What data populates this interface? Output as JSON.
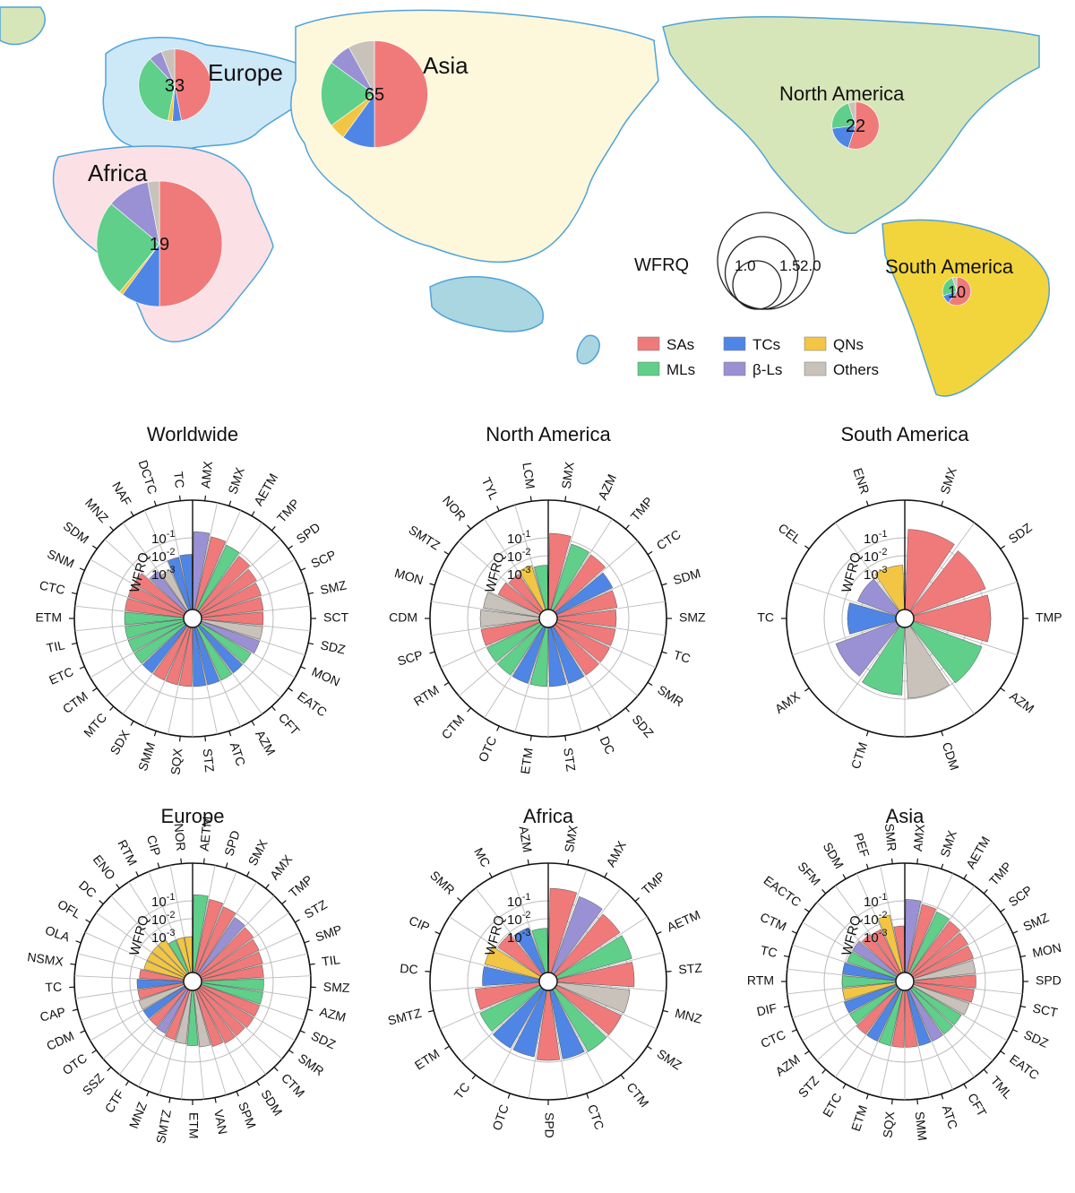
{
  "colors": {
    "SAs": "#f07a7a",
    "TCs": "#4f86e6",
    "QNs": "#f2c644",
    "MLs": "#5fcf8a",
    "bLs": "#9a91d4",
    "Others": "#c8c2ba",
    "ocean_outline": "#4ea3d9",
    "asia": "#fdf7dc",
    "europe": "#cde8f7",
    "africa": "#fbe1e5",
    "north_america": "#d7e6b8",
    "south_america": "#f2d53c",
    "oceania": "#a9d6e0"
  },
  "map": {
    "regions": [
      {
        "name": "Europe",
        "count": "33",
        "wfrq": 1.15,
        "shares": {
          "SAs": 0.47,
          "MLs": 0.35,
          "TCs": 0.04,
          "QNs": 0.02,
          "bLs": 0.06,
          "Others": 0.06
        }
      },
      {
        "name": "Asia",
        "count": "65",
        "wfrq": 1.7,
        "shares": {
          "SAs": 0.5,
          "TCs": 0.1,
          "QNs": 0.05,
          "MLs": 0.2,
          "bLs": 0.07,
          "Others": 0.08
        }
      },
      {
        "name": "North America",
        "count": "22",
        "wfrq": 0.75,
        "shares": {
          "SAs": 0.55,
          "TCs": 0.18,
          "MLs": 0.22,
          "Others": 0.05
        }
      },
      {
        "name": "Africa",
        "count": "19",
        "wfrq": 2.0,
        "shares": {
          "SAs": 0.5,
          "TCs": 0.1,
          "QNs": 0.01,
          "MLs": 0.25,
          "bLs": 0.11,
          "Others": 0.03
        }
      },
      {
        "name": "South America",
        "count": "10",
        "wfrq": 0.45,
        "shares": {
          "SAs": 0.6,
          "MLs": 0.25,
          "TCs": 0.1,
          "Others": 0.05
        }
      }
    ],
    "size_legend": {
      "label": "WFRQ",
      "values": [
        "1.0",
        "1.5",
        "2.0"
      ]
    },
    "category_legend": [
      {
        "key": "SAs",
        "label": "SAs"
      },
      {
        "key": "TCs",
        "label": "TCs"
      },
      {
        "key": "QNs",
        "label": "QNs"
      },
      {
        "key": "MLs",
        "label": "MLs"
      },
      {
        "key": "bLs",
        "label": "β-Ls"
      },
      {
        "key": "Others",
        "label": "Others"
      }
    ]
  },
  "chart_data": [
    {
      "type": "polar-bar",
      "title": "Worldwide",
      "ylabel": "WFRQ",
      "scale": "log",
      "ylim": [
        1e-05,
        1
      ],
      "ticks": [
        "10",
        "10",
        "10"
      ],
      "tick_exponents": [
        "-1",
        "-2",
        "-3"
      ],
      "bars": [
        {
          "label": "AMX",
          "cat": "bLs",
          "value": 0.22
        },
        {
          "label": "SMX",
          "cat": "SAs",
          "value": 0.15
        },
        {
          "label": "AETM",
          "cat": "MLs",
          "value": 0.1
        },
        {
          "label": "TMP",
          "cat": "SAs",
          "value": 0.07
        },
        {
          "label": "SPD",
          "cat": "SAs",
          "value": 0.045
        },
        {
          "label": "SCP",
          "cat": "SAs",
          "value": 0.035
        },
        {
          "label": "SMZ",
          "cat": "SAs",
          "value": 0.03
        },
        {
          "label": "SCT",
          "cat": "SAs",
          "value": 0.028
        },
        {
          "label": "SDZ",
          "cat": "Others",
          "value": 0.028
        },
        {
          "label": "MON",
          "cat": "bLs",
          "value": 0.028
        },
        {
          "label": "EATC",
          "cat": "MLs",
          "value": 0.02
        },
        {
          "label": "CFT",
          "cat": "TCs",
          "value": 0.02
        },
        {
          "label": "AZM",
          "cat": "MLs",
          "value": 0.02
        },
        {
          "label": "ATC",
          "cat": "TCs",
          "value": 0.02
        },
        {
          "label": "STZ",
          "cat": "TCs",
          "value": 0.02
        },
        {
          "label": "SQX",
          "cat": "SAs",
          "value": 0.02
        },
        {
          "label": "SMM",
          "cat": "SAs",
          "value": 0.02
        },
        {
          "label": "SDX",
          "cat": "SAs",
          "value": 0.02
        },
        {
          "label": "MTC",
          "cat": "TCs",
          "value": 0.02
        },
        {
          "label": "CTM",
          "cat": "MLs",
          "value": 0.02
        },
        {
          "label": "ETC",
          "cat": "MLs",
          "value": 0.02
        },
        {
          "label": "TIL",
          "cat": "MLs",
          "value": 0.02
        },
        {
          "label": "ETM",
          "cat": "MLs",
          "value": 0.02
        },
        {
          "label": "CTC",
          "cat": "SAs",
          "value": 0.02
        },
        {
          "label": "SNM",
          "cat": "SAs",
          "value": 0.02
        },
        {
          "label": "SDM",
          "cat": "SAs",
          "value": 0.02
        },
        {
          "label": "MNZ",
          "cat": "bLs",
          "value": 0.006
        },
        {
          "label": "NAF",
          "cat": "Others",
          "value": 0.003
        },
        {
          "label": "DCTC",
          "cat": "TCs",
          "value": 0.01
        },
        {
          "label": "TC",
          "cat": "TCs",
          "value": 0.012
        }
      ]
    },
    {
      "type": "polar-bar",
      "title": "North America",
      "ylabel": "WFRQ",
      "scale": "log",
      "ylim": [
        1e-05,
        1
      ],
      "ticks": [
        "10",
        "10",
        "10"
      ],
      "tick_exponents": [
        "-1",
        "-2",
        "-3"
      ],
      "bars": [
        {
          "label": "SMX",
          "cat": "SAs",
          "value": 0.18
        },
        {
          "label": "AZM",
          "cat": "MLs",
          "value": 0.07
        },
        {
          "label": "TMP",
          "cat": "SAs",
          "value": 0.06
        },
        {
          "label": "CTC",
          "cat": "TCs",
          "value": 0.03
        },
        {
          "label": "SDM",
          "cat": "SAs",
          "value": 0.025
        },
        {
          "label": "SMZ",
          "cat": "SAs",
          "value": 0.02
        },
        {
          "label": "TC",
          "cat": "SAs",
          "value": 0.02
        },
        {
          "label": "SMR",
          "cat": "SAs",
          "value": 0.02
        },
        {
          "label": "SDZ",
          "cat": "SAs",
          "value": 0.02
        },
        {
          "label": "DC",
          "cat": "TCs",
          "value": 0.02
        },
        {
          "label": "STZ",
          "cat": "TCs",
          "value": 0.02
        },
        {
          "label": "ETM",
          "cat": "MLs",
          "value": 0.02
        },
        {
          "label": "OTC",
          "cat": "TCs",
          "value": 0.02
        },
        {
          "label": "CTM",
          "cat": "MLs",
          "value": 0.02
        },
        {
          "label": "RTM",
          "cat": "MLs",
          "value": 0.02
        },
        {
          "label": "SCP",
          "cat": "SAs",
          "value": 0.02
        },
        {
          "label": "CDM",
          "cat": "Others",
          "value": 0.02
        },
        {
          "label": "MON",
          "cat": "Others",
          "value": 0.015
        },
        {
          "label": "SMTZ",
          "cat": "SAs",
          "value": 0.004
        },
        {
          "label": "NOR",
          "cat": "SAs",
          "value": 0.003
        },
        {
          "label": "TYL",
          "cat": "QNs",
          "value": 0.004
        },
        {
          "label": "LCM",
          "cat": "MLs",
          "value": 0.003
        }
      ]
    },
    {
      "type": "polar-bar",
      "title": "South America",
      "ylabel": "WFRQ",
      "scale": "log",
      "ylim": [
        1e-05,
        1
      ],
      "ticks": [
        "10",
        "10",
        "10"
      ],
      "tick_exponents": [
        "-1",
        "-2",
        "-3"
      ],
      "bars": [
        {
          "label": "SMX",
          "cat": "SAs",
          "value": 0.3
        },
        {
          "label": "SDZ",
          "cat": "SAs",
          "value": 0.2
        },
        {
          "label": "TMP",
          "cat": "SAs",
          "value": 0.2
        },
        {
          "label": "AZM",
          "cat": "MLs",
          "value": 0.12
        },
        {
          "label": "CDM",
          "cat": "Others",
          "value": 0.09
        },
        {
          "label": "CTM",
          "cat": "MLs",
          "value": 0.06
        },
        {
          "label": "AMX",
          "cat": "bLs",
          "value": 0.04
        },
        {
          "label": "TC",
          "cat": "TCs",
          "value": 0.005
        },
        {
          "label": "CEL",
          "cat": "bLs",
          "value": 0.002
        },
        {
          "label": "ENR",
          "cat": "QNs",
          "value": 0.003
        }
      ]
    },
    {
      "type": "polar-bar",
      "title": "Europe",
      "ylabel": "WFRQ",
      "scale": "log",
      "ylim": [
        1e-05,
        1
      ],
      "ticks": [
        "10",
        "10",
        "10"
      ],
      "tick_exponents": [
        "-1",
        "-2",
        "-3"
      ],
      "bars": [
        {
          "label": "AETM",
          "cat": "MLs",
          "value": 0.22
        },
        {
          "label": "SPD",
          "cat": "SAs",
          "value": 0.15
        },
        {
          "label": "SMX",
          "cat": "SAs",
          "value": 0.1
        },
        {
          "label": "AMX",
          "cat": "bLs",
          "value": 0.06
        },
        {
          "label": "TMP",
          "cat": "SAs",
          "value": 0.05
        },
        {
          "label": "STZ",
          "cat": "SAs",
          "value": 0.04
        },
        {
          "label": "SMP",
          "cat": "SAs",
          "value": 0.035
        },
        {
          "label": "TIL",
          "cat": "SAs",
          "value": 0.03
        },
        {
          "label": "SMZ",
          "cat": "MLs",
          "value": 0.03
        },
        {
          "label": "AZM",
          "cat": "MLs",
          "value": 0.03
        },
        {
          "label": "SDZ",
          "cat": "SAs",
          "value": 0.03
        },
        {
          "label": "SMR",
          "cat": "SAs",
          "value": 0.03
        },
        {
          "label": "CTM",
          "cat": "SAs",
          "value": 0.025
        },
        {
          "label": "SDM",
          "cat": "SAs",
          "value": 0.025
        },
        {
          "label": "SPM",
          "cat": "SAs",
          "value": 0.02
        },
        {
          "label": "VAN",
          "cat": "Others",
          "value": 0.015
        },
        {
          "label": "ETM",
          "cat": "MLs",
          "value": 0.012
        },
        {
          "label": "SMTZ",
          "cat": "Others",
          "value": 0.01
        },
        {
          "label": "MNZ",
          "cat": "SAs",
          "value": 0.008
        },
        {
          "label": "CTF",
          "cat": "bLs",
          "value": 0.006
        },
        {
          "label": "SSZ",
          "cat": "SAs",
          "value": 0.005
        },
        {
          "label": "OTC",
          "cat": "TCs",
          "value": 0.005
        },
        {
          "label": "CDM",
          "cat": "Others",
          "value": 0.005
        },
        {
          "label": "CAP",
          "cat": "SAs",
          "value": 0.004
        },
        {
          "label": "TC",
          "cat": "TCs",
          "value": 0.004
        },
        {
          "label": "NSMX",
          "cat": "SAs",
          "value": 0.003
        },
        {
          "label": "OLA",
          "cat": "QNs",
          "value": 0.002
        },
        {
          "label": "OFL",
          "cat": "QNs",
          "value": 0.002
        },
        {
          "label": "DC",
          "cat": "QNs",
          "value": 0.002
        },
        {
          "label": "ENO",
          "cat": "QNs",
          "value": 0.002
        },
        {
          "label": "RTM",
          "cat": "MLs",
          "value": 0.001
        },
        {
          "label": "CIP",
          "cat": "QNs",
          "value": 0.001
        },
        {
          "label": "NOR",
          "cat": "QNs",
          "value": 0.001
        }
      ]
    },
    {
      "type": "polar-bar",
      "title": "Africa",
      "ylabel": "WFRQ",
      "scale": "log",
      "ylim": [
        1e-05,
        1
      ],
      "ticks": [
        "10",
        "10",
        "10"
      ],
      "tick_exponents": [
        "-1",
        "-2",
        "-3"
      ],
      "bars": [
        {
          "label": "SMX",
          "cat": "SAs",
          "value": 0.5
        },
        {
          "label": "AMX",
          "cat": "bLs",
          "value": 0.35
        },
        {
          "label": "TMP",
          "cat": "SAs",
          "value": 0.22
        },
        {
          "label": "AETM",
          "cat": "MLs",
          "value": 0.22
        },
        {
          "label": "STZ",
          "cat": "SAs",
          "value": 0.2
        },
        {
          "label": "MNZ",
          "cat": "Others",
          "value": 0.12
        },
        {
          "label": "SMZ",
          "cat": "SAs",
          "value": 0.1
        },
        {
          "label": "CTM",
          "cat": "MLs",
          "value": 0.1
        },
        {
          "label": "CTC",
          "cat": "TCs",
          "value": 0.08
        },
        {
          "label": "SPD",
          "cat": "SAs",
          "value": 0.08
        },
        {
          "label": "OTC",
          "cat": "TCs",
          "value": 0.06
        },
        {
          "label": "TC",
          "cat": "TCs",
          "value": 0.06
        },
        {
          "label": "ETM",
          "cat": "MLs",
          "value": 0.05
        },
        {
          "label": "SMTZ",
          "cat": "SAs",
          "value": 0.04
        },
        {
          "label": "DC",
          "cat": "TCs",
          "value": 0.015
        },
        {
          "label": "CIP",
          "cat": "QNs",
          "value": 0.015
        },
        {
          "label": "SMR",
          "cat": "SAs",
          "value": 0.008
        },
        {
          "label": "MC",
          "cat": "TCs",
          "value": 0.005
        },
        {
          "label": "AZM",
          "cat": "MLs",
          "value": 0.003
        }
      ]
    },
    {
      "type": "polar-bar",
      "title": "Asia",
      "ylabel": "WFRQ",
      "scale": "log",
      "ylim": [
        1e-05,
        1
      ],
      "ticks": [
        "10",
        "10",
        "10"
      ],
      "tick_exponents": [
        "-1",
        "-2",
        "-3"
      ],
      "bars": [
        {
          "label": "AMX",
          "cat": "bLs",
          "value": 0.12
        },
        {
          "label": "SMX",
          "cat": "SAs",
          "value": 0.08
        },
        {
          "label": "AETM",
          "cat": "MLs",
          "value": 0.06
        },
        {
          "label": "TMP",
          "cat": "SAs",
          "value": 0.05
        },
        {
          "label": "SCP",
          "cat": "SAs",
          "value": 0.04
        },
        {
          "label": "SMZ",
          "cat": "SAs",
          "value": 0.035
        },
        {
          "label": "MON",
          "cat": "Others",
          "value": 0.03
        },
        {
          "label": "SPD",
          "cat": "SAs",
          "value": 0.03
        },
        {
          "label": "SCT",
          "cat": "SAs",
          "value": 0.025
        },
        {
          "label": "SDZ",
          "cat": "Others",
          "value": 0.02
        },
        {
          "label": "EATC",
          "cat": "MLs",
          "value": 0.015
        },
        {
          "label": "TML",
          "cat": "MLs",
          "value": 0.015
        },
        {
          "label": "CFT",
          "cat": "bLs",
          "value": 0.015
        },
        {
          "label": "ATC",
          "cat": "TCs",
          "value": 0.015
        },
        {
          "label": "SMM",
          "cat": "SAs",
          "value": 0.015
        },
        {
          "label": "SQX",
          "cat": "SAs",
          "value": 0.015
        },
        {
          "label": "ETM",
          "cat": "MLs",
          "value": 0.015
        },
        {
          "label": "ETC",
          "cat": "TCs",
          "value": 0.015
        },
        {
          "label": "STZ",
          "cat": "SAs",
          "value": 0.015
        },
        {
          "label": "AZM",
          "cat": "MLs",
          "value": 0.012
        },
        {
          "label": "CTC",
          "cat": "TCs",
          "value": 0.012
        },
        {
          "label": "DIF",
          "cat": "QNs",
          "value": 0.01
        },
        {
          "label": "RTM",
          "cat": "MLs",
          "value": 0.01
        },
        {
          "label": "TC",
          "cat": "TCs",
          "value": 0.01
        },
        {
          "label": "CTM",
          "cat": "MLs",
          "value": 0.008
        },
        {
          "label": "EACTC",
          "cat": "bLs",
          "value": 0.008
        },
        {
          "label": "SFM",
          "cat": "SAs",
          "value": 0.006
        },
        {
          "label": "SDM",
          "cat": "SAs",
          "value": 0.005
        },
        {
          "label": "PEF",
          "cat": "QNs",
          "value": 0.02
        },
        {
          "label": "SMR",
          "cat": "SAs",
          "value": 0.004
        }
      ]
    }
  ]
}
